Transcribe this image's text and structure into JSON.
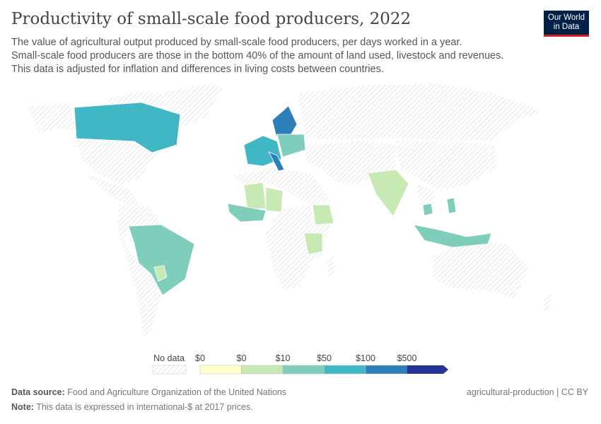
{
  "header": {
    "title": "Productivity of small-scale food producers, 2022",
    "subtitle_lines": [
      "The value of agricultural output produced by small-scale food producers, per days worked in a year.",
      "Small-scale food producers are those in the bottom 40% of the amount of land used, livestock and revenues.",
      "This data is adjusted for inflation and differences in living costs between countries."
    ],
    "logo": [
      "Our World",
      "in Data"
    ]
  },
  "chart_data": {
    "type": "map",
    "year": "2022",
    "legend": {
      "no_data_label": "No data",
      "tick_labels": [
        "$0",
        "$0",
        "$10",
        "$50",
        "$100",
        "$500"
      ],
      "bin_colors": [
        "#ffffcc",
        "#c7e9b4",
        "#7fcdbb",
        "#41b6c4",
        "#2c7fb8",
        "#253494"
      ],
      "no_data_color": "#e0e0e0",
      "placement": "bottom"
    },
    "regions": [
      {
        "name": "Canada",
        "bin": 3
      },
      {
        "name": "Brazil",
        "bin": 2
      },
      {
        "name": "Paraguay",
        "bin": 1
      },
      {
        "name": "Sweden/Norway",
        "bin": 4
      },
      {
        "name": "Western Europe",
        "bin": 3
      },
      {
        "name": "Central Europe",
        "bin": 2
      },
      {
        "name": "Italy",
        "bin": 4
      },
      {
        "name": "Mali",
        "bin": 1
      },
      {
        "name": "Niger",
        "bin": 1
      },
      {
        "name": "West African coast",
        "bin": 2
      },
      {
        "name": "Ethiopia",
        "bin": 1
      },
      {
        "name": "Tanzania",
        "bin": 1
      },
      {
        "name": "India",
        "bin": 1
      },
      {
        "name": "Vietnam",
        "bin": 2
      },
      {
        "name": "Indonesia",
        "bin": 2
      },
      {
        "name": "Philippines",
        "bin": 2
      }
    ]
  },
  "footer": {
    "source_label": "Data source:",
    "source": "Food and Agriculture Organization of the United Nations",
    "note_label": "Note:",
    "note": "This data is expressed in international-$ at 2017 prices.",
    "slug": "agricultural-production | CC BY"
  }
}
